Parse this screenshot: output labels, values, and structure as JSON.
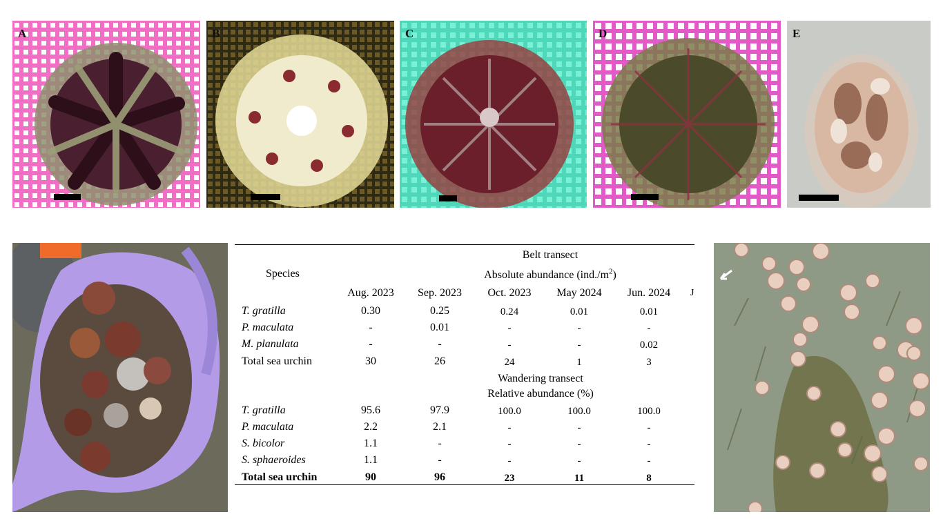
{
  "panels": [
    {
      "letter": "A",
      "bg": "#f06fc4",
      "body": "#5a2a2a",
      "spines": "#8e8f6e"
    },
    {
      "letter": "B",
      "bg": "#6b5a26",
      "body": "#efe6c6",
      "spines": "#e9e2a0"
    },
    {
      "letter": "C",
      "bg": "#57e6c8",
      "body": "#6a1f2a",
      "spines": "#9a3a3a"
    },
    {
      "letter": "D",
      "bg": "#e25ac8",
      "body": "#4b4a2a",
      "spines": "#7d7a4a"
    },
    {
      "letter": "E",
      "bg": "#c9cbc7",
      "body": "#d8b8a2",
      "spines": "#c79d83"
    }
  ],
  "table": {
    "header_belt": "Belt transect",
    "species_header": "Species",
    "abs_label": "Absolute abundance (ind./m",
    "abs_sup": "2",
    "abs_close": ")",
    "months": [
      "Aug. 2023",
      "Sep. 2023",
      "Oct. 2023",
      "May 2024",
      "Jun. 2024"
    ],
    "cut_glyph": "J",
    "belt_rows": [
      {
        "species": "T. gratilla",
        "values": [
          "0.30",
          "0.25",
          "0.24",
          "0.01",
          "0.01"
        ]
      },
      {
        "species": "P. maculata",
        "values": [
          "-",
          "0.01",
          "-",
          "-",
          "-"
        ]
      },
      {
        "species": "M. planulata",
        "values": [
          "-",
          "-",
          "-",
          "-",
          "0.02"
        ]
      }
    ],
    "belt_total": {
      "species": "Total sea urchin",
      "values": [
        "30",
        "26",
        "24",
        "1",
        "3"
      ]
    },
    "wander_header": "Wandering transect",
    "rel_label": "Relative abundance (%)",
    "wander_rows": [
      {
        "species": "T. gratilla",
        "values": [
          "95.6",
          "97.9",
          "100.0",
          "100.0",
          "100.0"
        ]
      },
      {
        "species": "P. maculata",
        "values": [
          "2.2",
          "2.1",
          "-",
          "-",
          "-"
        ]
      },
      {
        "species": "S. bicolor",
        "values": [
          "1.1",
          "-",
          "-",
          "-",
          "-"
        ]
      },
      {
        "species": "S. sphaeroides",
        "values": [
          "1.1",
          "-",
          "-",
          "-",
          "-"
        ]
      }
    ],
    "wander_total": {
      "species": "Total sea urchin",
      "values": [
        "90",
        "96",
        "23",
        "11",
        "8"
      ]
    }
  },
  "colors": {
    "bag": "#b39be8",
    "water": "#8f9a86",
    "urchin_pale": "#e8cfc0",
    "grass": "#6f7a56"
  }
}
